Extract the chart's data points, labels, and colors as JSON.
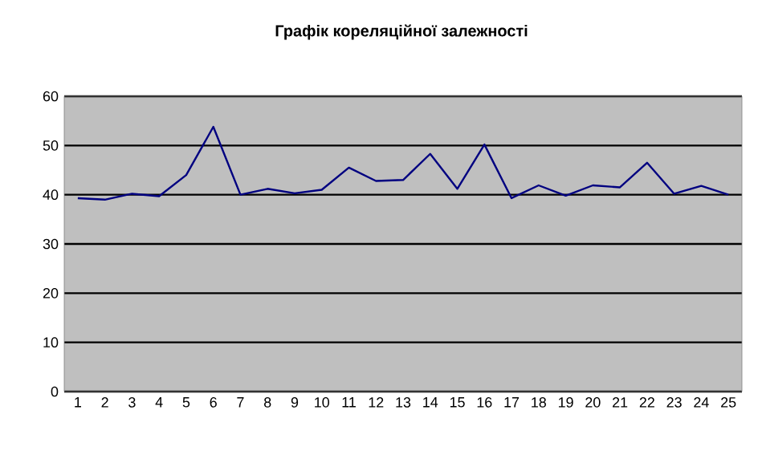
{
  "chart_data": {
    "type": "line",
    "title": "Графік кореляційної залежності",
    "categories": [
      "1",
      "2",
      "3",
      "4",
      "5",
      "6",
      "7",
      "8",
      "9",
      "10",
      "11",
      "12",
      "13",
      "14",
      "15",
      "16",
      "17",
      "18",
      "19",
      "20",
      "21",
      "22",
      "23",
      "24",
      "25"
    ],
    "values": [
      39.3,
      39,
      40.2,
      39.7,
      44,
      53.8,
      40,
      41.2,
      40.3,
      41,
      45.5,
      42.8,
      43,
      48.3,
      41.2,
      50.2,
      39.3,
      41.9,
      39.8,
      41.9,
      41.5,
      46.5,
      40.2,
      41.8,
      40
    ],
    "color": "#000080",
    "ylim": [
      0,
      60
    ],
    "yticks": [
      0,
      10,
      20,
      30,
      40,
      50,
      60
    ],
    "grid": "y",
    "marker": "none",
    "line_style": "solid"
  }
}
